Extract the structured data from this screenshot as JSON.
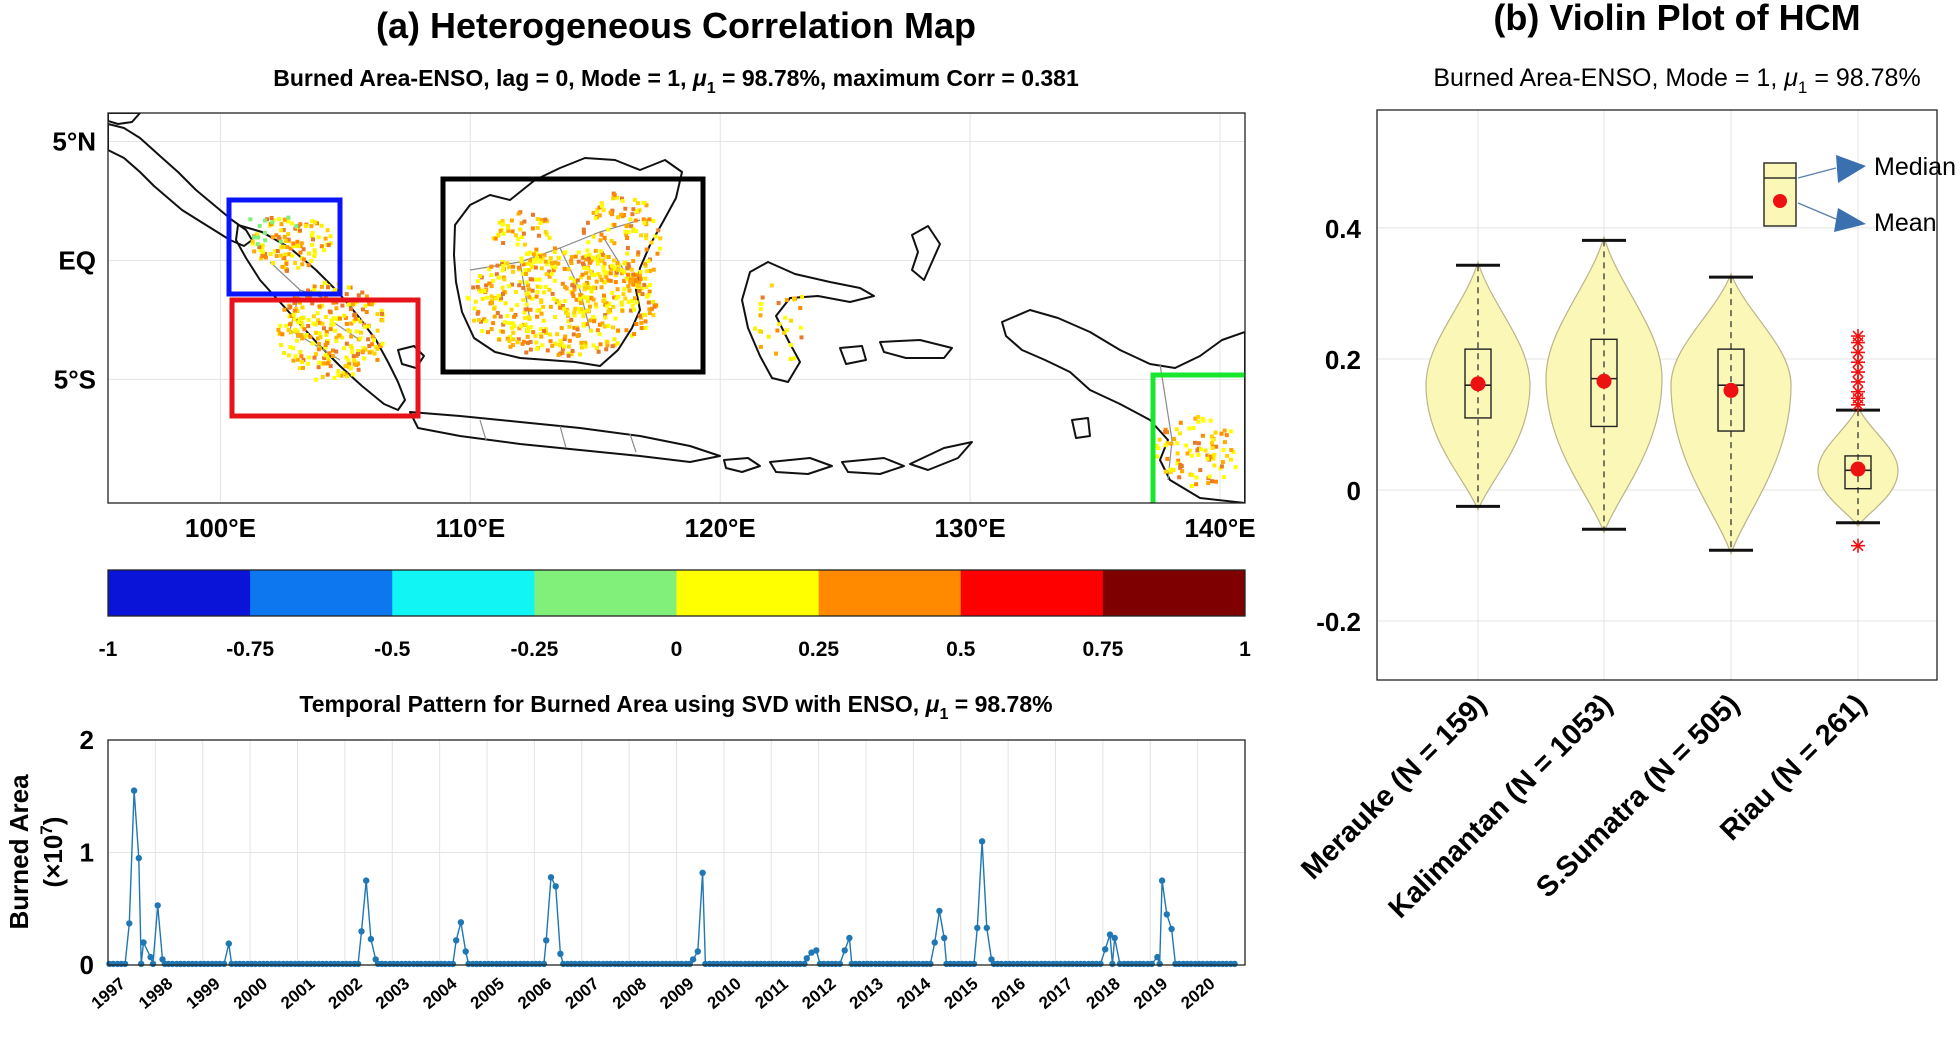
{
  "panel_a": {
    "title": "(a) Heterogeneous Correlation Map",
    "subtitle": "Burned Area-ENSO, lag = 0, Mode = 1, μ₁ = 98.78%, maximum Corr = 0.381",
    "lat_ticks": [
      "5°N",
      "EQ",
      "5°S"
    ],
    "lon_ticks": [
      "100°E",
      "110°E",
      "120°E",
      "130°E",
      "140°E"
    ],
    "region_box_colors": [
      "#0a14ff",
      "#e8131a",
      "#000000",
      "#19e62c"
    ]
  },
  "colorbar": {
    "tick_labels": [
      "-1",
      "-0.75",
      "-0.5",
      "-0.25",
      "0",
      "0.25",
      "0.5",
      "0.75",
      "1"
    ],
    "colors": [
      "#0a14d9",
      "#0d77f0",
      "#12f5f5",
      "#80f07a",
      "#ffff00",
      "#ff8a00",
      "#ff0000",
      "#7f0000"
    ]
  },
  "chart_data": [
    {
      "type": "scatter",
      "title": "(a) Heterogeneous Correlation Map",
      "subtitle": "Burned Area-ENSO, lag = 0, Mode = 1, μ₁ = 98.78%, maximum Corr = 0.381",
      "x_ticks": [
        "100°E",
        "110°E",
        "120°E",
        "130°E",
        "140°E"
      ],
      "y_ticks": [
        "5°N",
        "EQ",
        "5°S"
      ],
      "xlim": [
        95.5,
        141
      ],
      "ylim": [
        -10.2,
        6.2
      ],
      "grid": true
    },
    {
      "type": "line",
      "title": "Temporal Pattern for Burned Area using SVD with ENSO, μ₁ = 98.78%",
      "ylabel": "Burned Area",
      "yunit": "(×10⁷)",
      "ylim": [
        0,
        2
      ],
      "yticks": [
        "0",
        "1",
        "2"
      ],
      "xlim": [
        1997,
        2021
      ],
      "x_tick_labels": [
        "1997",
        "1998",
        "1999",
        "2000",
        "2001",
        "2002",
        "2003",
        "2004",
        "2005",
        "2006",
        "2007",
        "2008",
        "2009",
        "2010",
        "2011",
        "2012",
        "2013",
        "2014",
        "2015",
        "2016",
        "2017",
        "2018",
        "2019",
        "2020"
      ],
      "color": "#1f77b4",
      "grid": true,
      "series": [
        {
          "x": [
            1997.45,
            1997.55,
            1997.65,
            1997.75,
            1997.9,
            1998.05,
            1998.15,
            1999.55,
            2002.35,
            2002.45,
            2002.55,
            2002.65,
            2004.35,
            2004.45,
            2004.55,
            2006.25,
            2006.35,
            2006.45,
            2006.55,
            2009.35,
            2009.45,
            2009.55,
            2011.75,
            2011.85,
            2011.95,
            2012.55,
            2012.65,
            2014.45,
            2014.55,
            2014.65,
            2015.35,
            2015.45,
            2015.55,
            2015.65,
            2018.05,
            2018.15,
            2018.25,
            2019.15,
            2019.25,
            2019.35,
            2019.45
          ],
          "y": [
            0.37,
            1.55,
            0.95,
            0.2,
            0.07,
            0.53,
            0.05,
            0.19,
            0.3,
            0.75,
            0.23,
            0.05,
            0.22,
            0.38,
            0.12,
            0.22,
            0.78,
            0.7,
            0.1,
            0.05,
            0.12,
            0.82,
            0.06,
            0.11,
            0.13,
            0.13,
            0.24,
            0.2,
            0.48,
            0.24,
            0.33,
            1.1,
            0.33,
            0.05,
            0.14,
            0.27,
            0.24,
            0.07,
            0.75,
            0.45,
            0.32
          ]
        }
      ]
    },
    {
      "type": "violin",
      "title": "(b) Violin Plot of HCM",
      "subtitle": "Burned Area-ENSO, Mode = 1, μ₁ = 98.78%",
      "ylim": [
        -0.29,
        0.58
      ],
      "yticks": [
        "-0.2",
        "0",
        "0.2",
        "0.4"
      ],
      "fill": "#fbf7b7",
      "mean_color": "#ee1111",
      "legend": {
        "labels": [
          "Median",
          "Mean"
        ],
        "placement": "top-right"
      },
      "categories": [
        "Merauke (N = 159)",
        "Kalimantan (N = 1053)",
        "S.Sumatra (N = 505)",
        "Riau (N = 261)"
      ],
      "series": [
        {
          "name": "Merauke",
          "min": -0.025,
          "q1": 0.11,
          "median": 0.16,
          "q3": 0.215,
          "max": 0.343,
          "mean": 0.162,
          "outliers": []
        },
        {
          "name": "Kalimantan",
          "min": -0.06,
          "q1": 0.097,
          "median": 0.17,
          "q3": 0.23,
          "max": 0.381,
          "mean": 0.166,
          "outliers": []
        },
        {
          "name": "S.Sumatra",
          "min": -0.092,
          "q1": 0.09,
          "median": 0.16,
          "q3": 0.215,
          "max": 0.325,
          "mean": 0.152,
          "outliers": []
        },
        {
          "name": "Riau",
          "min": -0.05,
          "q1": 0.002,
          "median": 0.03,
          "q3": 0.052,
          "max": 0.122,
          "mean": 0.032,
          "outliers": [
            0.235,
            0.225,
            0.21,
            0.195,
            0.18,
            0.165,
            0.15,
            0.14,
            0.13,
            -0.085
          ]
        }
      ]
    }
  ]
}
